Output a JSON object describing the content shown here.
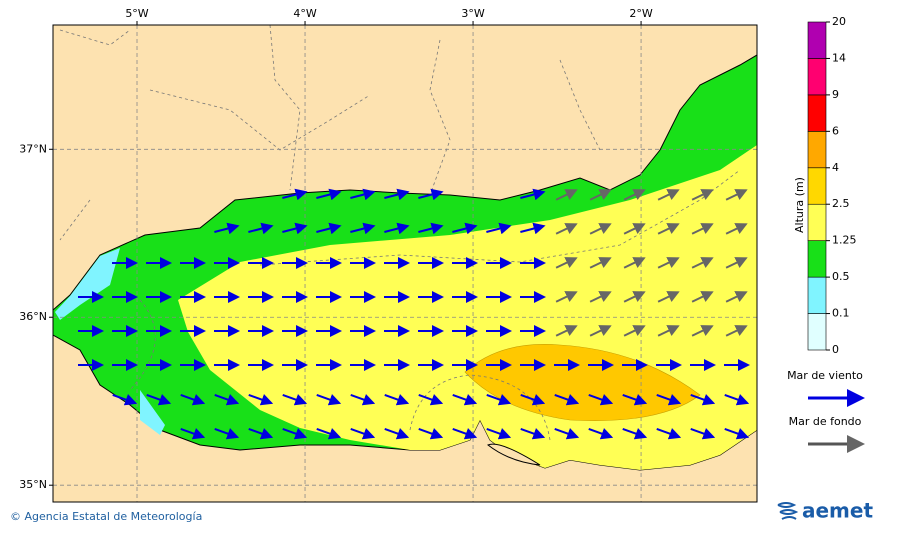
{
  "map": {
    "xlim": [
      -5.5,
      -1.31
    ],
    "ylim": [
      34.9,
      37.74
    ],
    "xticks": [
      {
        "value": -5,
        "label": "5°W"
      },
      {
        "value": -4,
        "label": "4°W"
      },
      {
        "value": -3,
        "label": "3°W"
      },
      {
        "value": -2,
        "label": "2°W"
      }
    ],
    "yticks": [
      {
        "value": 37,
        "label": "37°N"
      },
      {
        "value": 36,
        "label": "36°N"
      },
      {
        "value": 35,
        "label": "35°N"
      }
    ],
    "grid": true
  },
  "colorbar": {
    "title": "Altura (m)",
    "levels": [
      0,
      0.1,
      0.5,
      1.25,
      2.5,
      4,
      6,
      9,
      14,
      20
    ],
    "colors": [
      "#e0ffff",
      "#80f4ff",
      "#18e018",
      "#ffff55",
      "#ffd800",
      "#ffa800",
      "#ff0000",
      "#ff0070",
      "#b000b0"
    ]
  },
  "legend": {
    "items": [
      {
        "name": "Mar de viento",
        "color": "#0000e0"
      },
      {
        "name": "Mar de fondo",
        "color": "#555555"
      }
    ]
  },
  "footer": {
    "credit": "© Agencia Estatal de Meteorología",
    "logo": "aemet"
  }
}
